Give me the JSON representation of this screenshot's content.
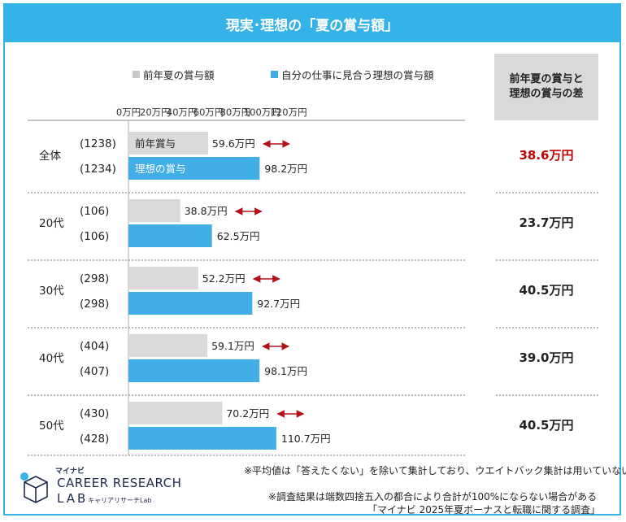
{
  "title": "現実･理想の「夏の賞与額」",
  "legend": {
    "prev": "前年夏の賞与額",
    "ideal": "自分の仕事に見合う理想の賞与額"
  },
  "diff_header": "前年夏の賞与と\n理想の賞与の差",
  "colors": {
    "accent": "#35b2e8",
    "prev_bar": "#d9d9d9",
    "ideal_bar": "#42aee7",
    "arrow": "#b3121b",
    "highlight": "#c00000"
  },
  "chart_data": {
    "type": "bar",
    "orientation": "horizontal",
    "categories": [
      "全体",
      "20代",
      "30代",
      "40代",
      "50代"
    ],
    "sample_sizes": {
      "prev": [
        "(1238)",
        "(106)",
        "(298)",
        "(404)",
        "(430)"
      ],
      "ideal": [
        "(1234)",
        "(106)",
        "(298)",
        "(407)",
        "(428)"
      ]
    },
    "series": [
      {
        "name": "前年夏の賞与額",
        "values": [
          59.6,
          38.8,
          52.2,
          59.1,
          70.2
        ],
        "labels": [
          "59.6万円",
          "38.8万円",
          "52.2万円",
          "59.1万円",
          "70.2万円"
        ]
      },
      {
        "name": "自分の仕事に見合う理想の賞与額",
        "values": [
          98.2,
          62.5,
          92.7,
          98.1,
          110.7
        ],
        "labels": [
          "98.2万円",
          "62.5万円",
          "92.7万円",
          "98.1万円",
          "110.7万円"
        ]
      }
    ],
    "inbar_labels": {
      "prev": "前年賞与",
      "ideal": "理想の賞与"
    },
    "xticks": [
      0,
      20,
      40,
      60,
      80,
      100,
      120
    ],
    "xtick_labels": [
      "0万円",
      "20万円",
      "40万円",
      "60万円",
      "80万円",
      "100万円",
      "120万円"
    ],
    "xlim": [
      0,
      120
    ],
    "difference": {
      "values": [
        38.6,
        23.7,
        40.5,
        39.0,
        40.5
      ],
      "labels": [
        "38.6万円",
        "23.7万円",
        "40.5万円",
        "39.0万円",
        "40.5万円"
      ]
    },
    "legend_position": "top"
  },
  "notes": {
    "n1": "※平均値は「答えたくない」を除いて集計しており、ウエイトバック集計は用いていない",
    "n2": "※調査結果は端数四捨五入の都合により合計が100%にならない場合がある",
    "n3": "「マイナビ 2025年夏ボーナスと転職に関する調査」"
  },
  "logo": {
    "brand": "マイナビ",
    "line1": "CAREER RESEARCH",
    "line2": "LAB",
    "line3": "キャリアリサーチLab"
  }
}
